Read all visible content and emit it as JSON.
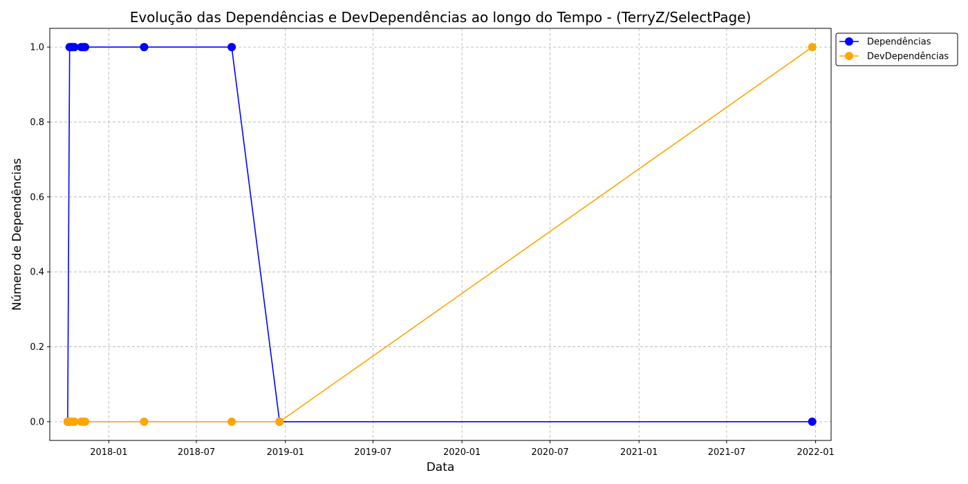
{
  "chart_data": {
    "type": "line",
    "title": "Evolução das Dependências e DevDependências ao longo do Tempo - (TerryZ/SelectPage)",
    "xlabel": "Data",
    "ylabel": "Número de Dependências",
    "x_ticks": [
      "2018-01",
      "2018-07",
      "2019-01",
      "2019-07",
      "2020-01",
      "2020-07",
      "2021-01",
      "2021-07",
      "2022-01"
    ],
    "y_ticks": [
      "0.0",
      "0.2",
      "0.4",
      "0.6",
      "0.8",
      "1.0"
    ],
    "xlim": [
      "2017-09-01",
      "2022-02-02"
    ],
    "ylim": [
      -0.05,
      1.05
    ],
    "grid": true,
    "legend_position": "outside-top-right",
    "series": [
      {
        "name": "Dependências",
        "color": "#0000ff",
        "points": [
          [
            "2017-10-08",
            0
          ],
          [
            "2017-10-12",
            1
          ],
          [
            "2017-10-15",
            1
          ],
          [
            "2017-10-18",
            1
          ],
          [
            "2017-10-22",
            1
          ],
          [
            "2017-11-05",
            1
          ],
          [
            "2017-11-10",
            1
          ],
          [
            "2017-11-13",
            1
          ],
          [
            "2018-03-15",
            1
          ],
          [
            "2018-09-12",
            1
          ],
          [
            "2018-12-20",
            0
          ],
          [
            "2021-12-25",
            0
          ]
        ]
      },
      {
        "name": "DevDependências",
        "color": "#ffa500",
        "points": [
          [
            "2017-10-08",
            0
          ],
          [
            "2017-10-12",
            0
          ],
          [
            "2017-10-15",
            0
          ],
          [
            "2017-10-18",
            0
          ],
          [
            "2017-10-22",
            0
          ],
          [
            "2017-11-05",
            0
          ],
          [
            "2017-11-10",
            0
          ],
          [
            "2017-11-13",
            0
          ],
          [
            "2018-03-15",
            0
          ],
          [
            "2018-09-12",
            0
          ],
          [
            "2018-12-20",
            0
          ],
          [
            "2021-12-25",
            1
          ]
        ]
      }
    ]
  }
}
